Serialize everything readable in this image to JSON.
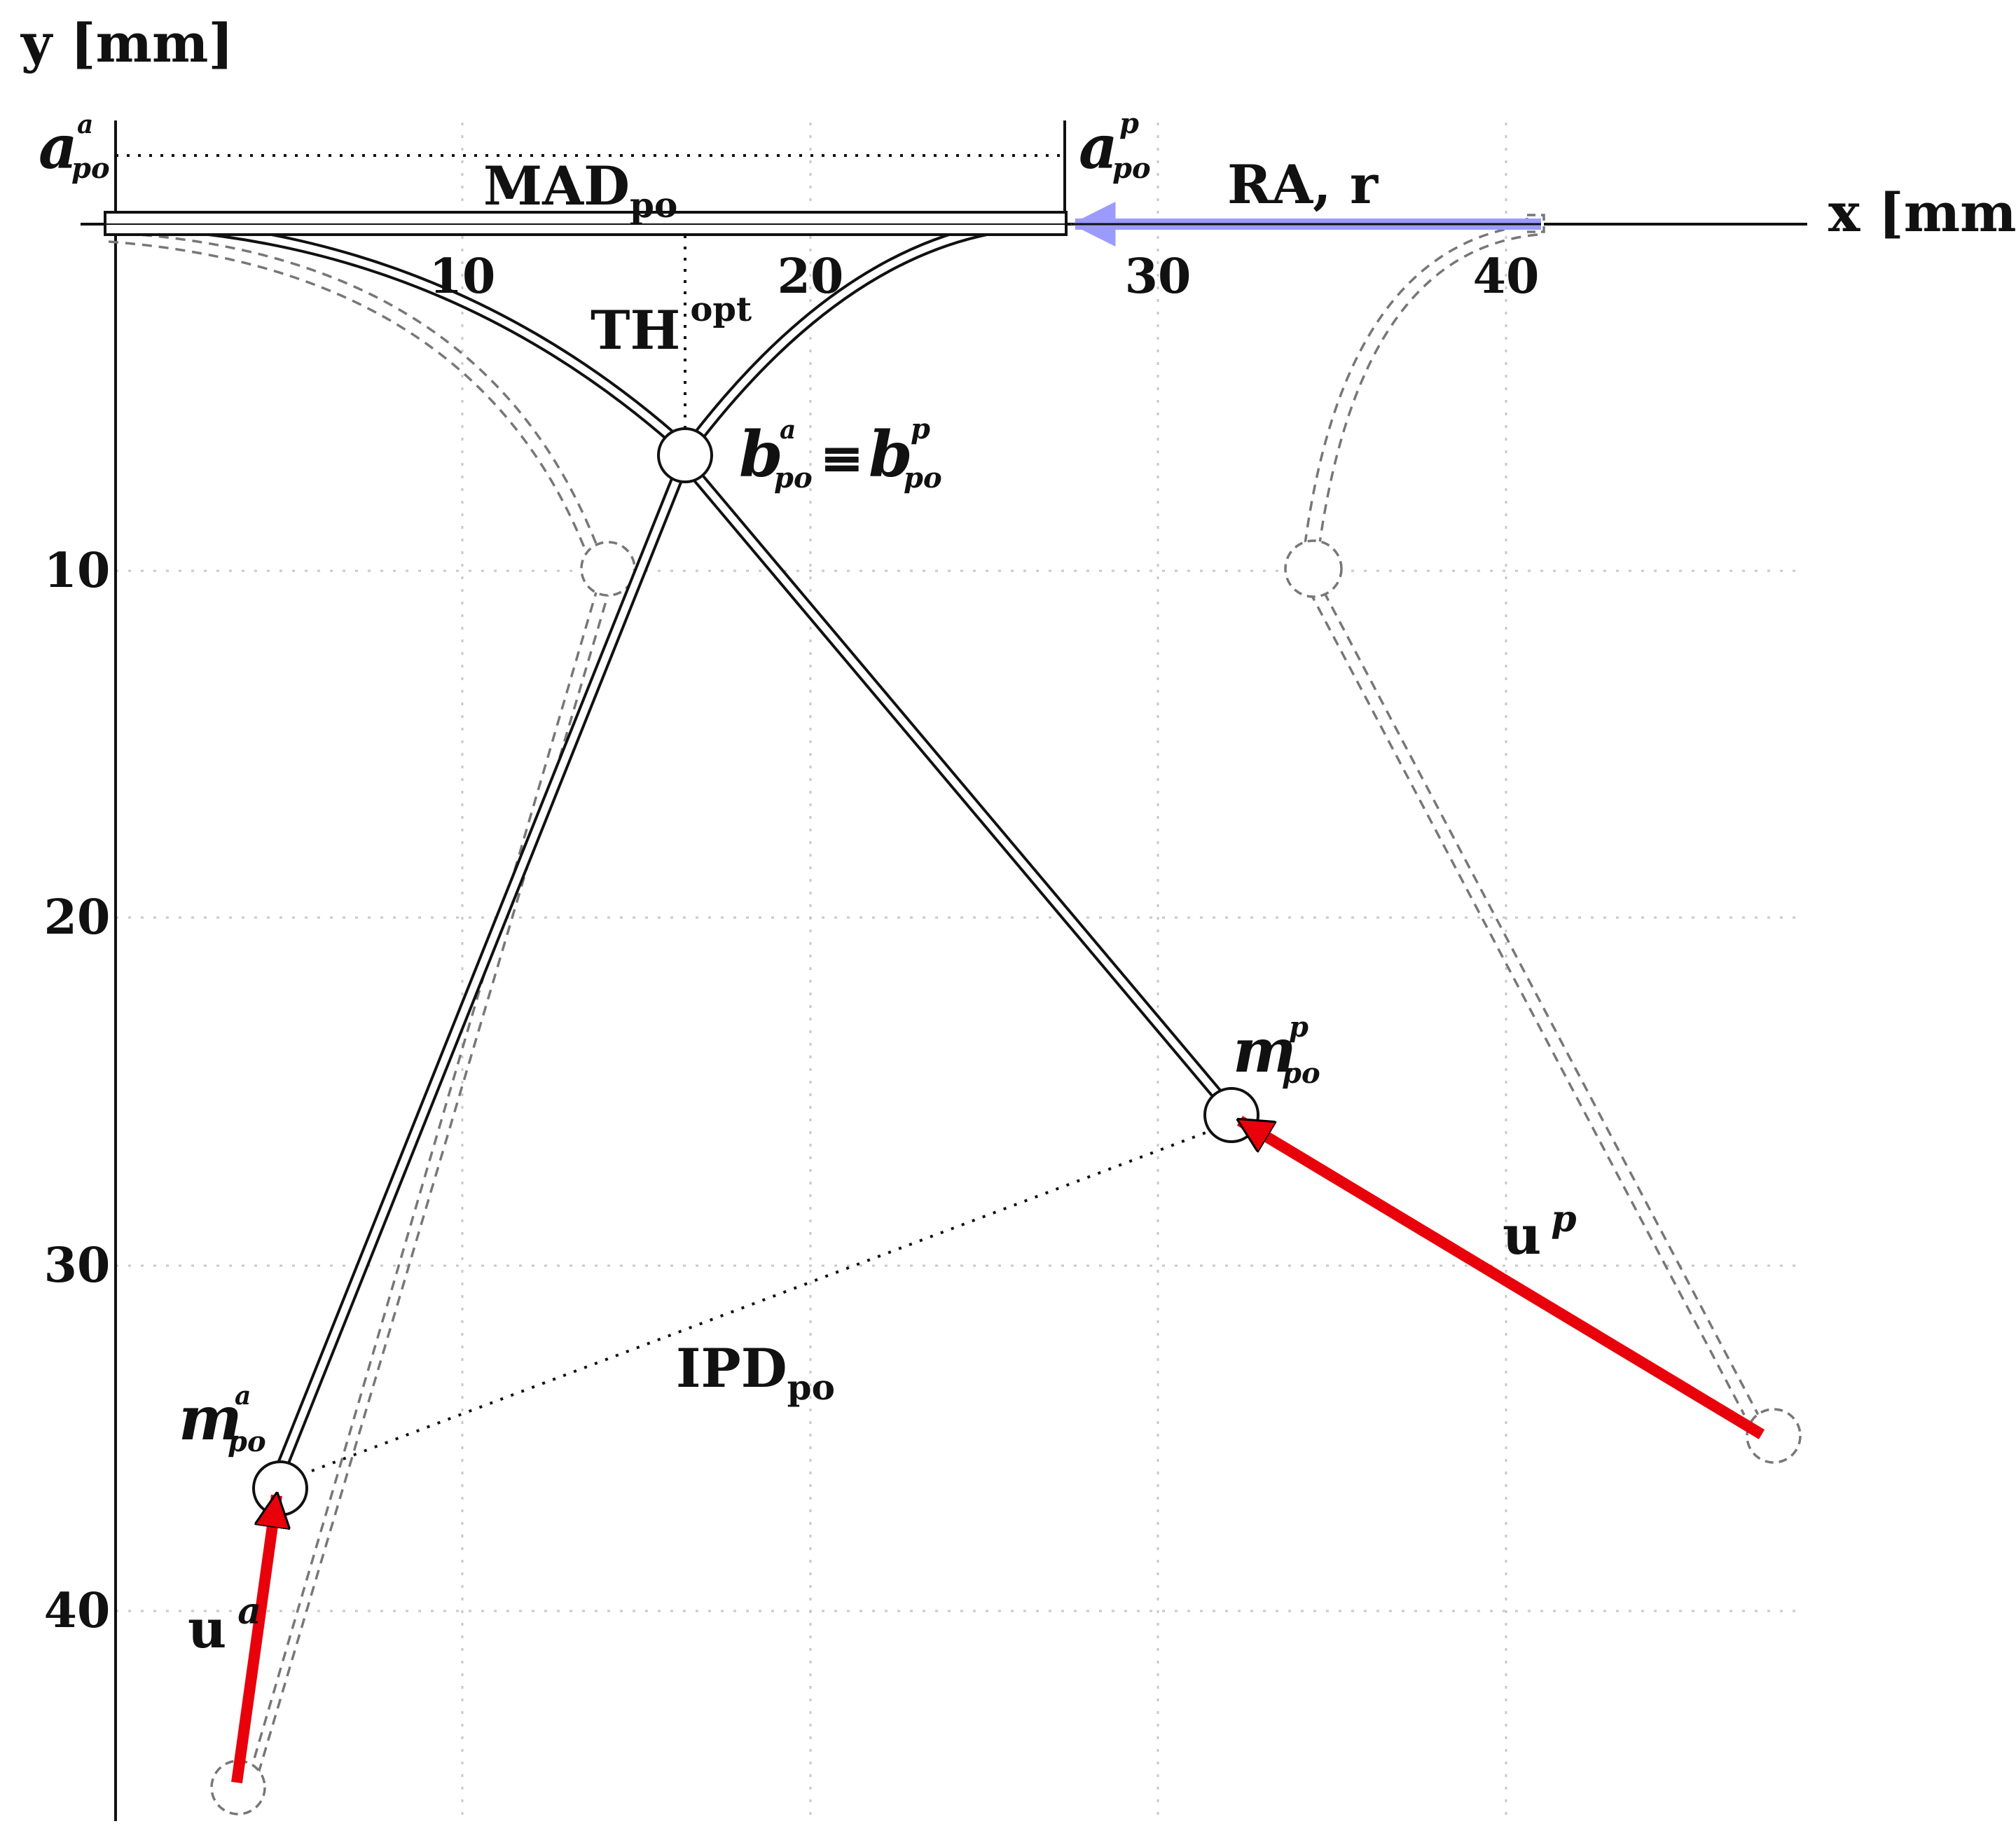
{
  "axes": {
    "y_label": "y [mm]",
    "x_label": "x [mm]",
    "x_ticks": [
      "10",
      "20",
      "30",
      "40"
    ],
    "y_ticks": [
      "10",
      "20",
      "30",
      "40"
    ]
  },
  "labels": {
    "mad": {
      "main": "MAD",
      "sub": "po"
    },
    "th": {
      "main": "TH",
      "sup": "opt"
    },
    "ra": "RA, r",
    "ipd": {
      "main": "IPD",
      "sub": "po"
    },
    "a_po_a": {
      "main": "a",
      "sup": "a",
      "sub": "po"
    },
    "a_po_p": {
      "main": "a",
      "sup": "p",
      "sub": "po"
    },
    "b_eq": {
      "main": "b",
      "sup": "a",
      "sub": "po",
      "equiv": "≡",
      "main2": "b",
      "sup2": "p",
      "sub2": "po"
    },
    "m_po_p": {
      "main": "m",
      "sup": "p",
      "sub": "po"
    },
    "m_po_a": {
      "main": "m",
      "sup": "a",
      "sub": "po"
    },
    "u_p": {
      "main": "u",
      "sup": "p"
    },
    "u_a": {
      "main": "u",
      "sup": "a"
    }
  },
  "colors": {
    "force_arrow": "#e8000b",
    "ra_arrow": "#9b9bff",
    "ghost": "#777777"
  }
}
